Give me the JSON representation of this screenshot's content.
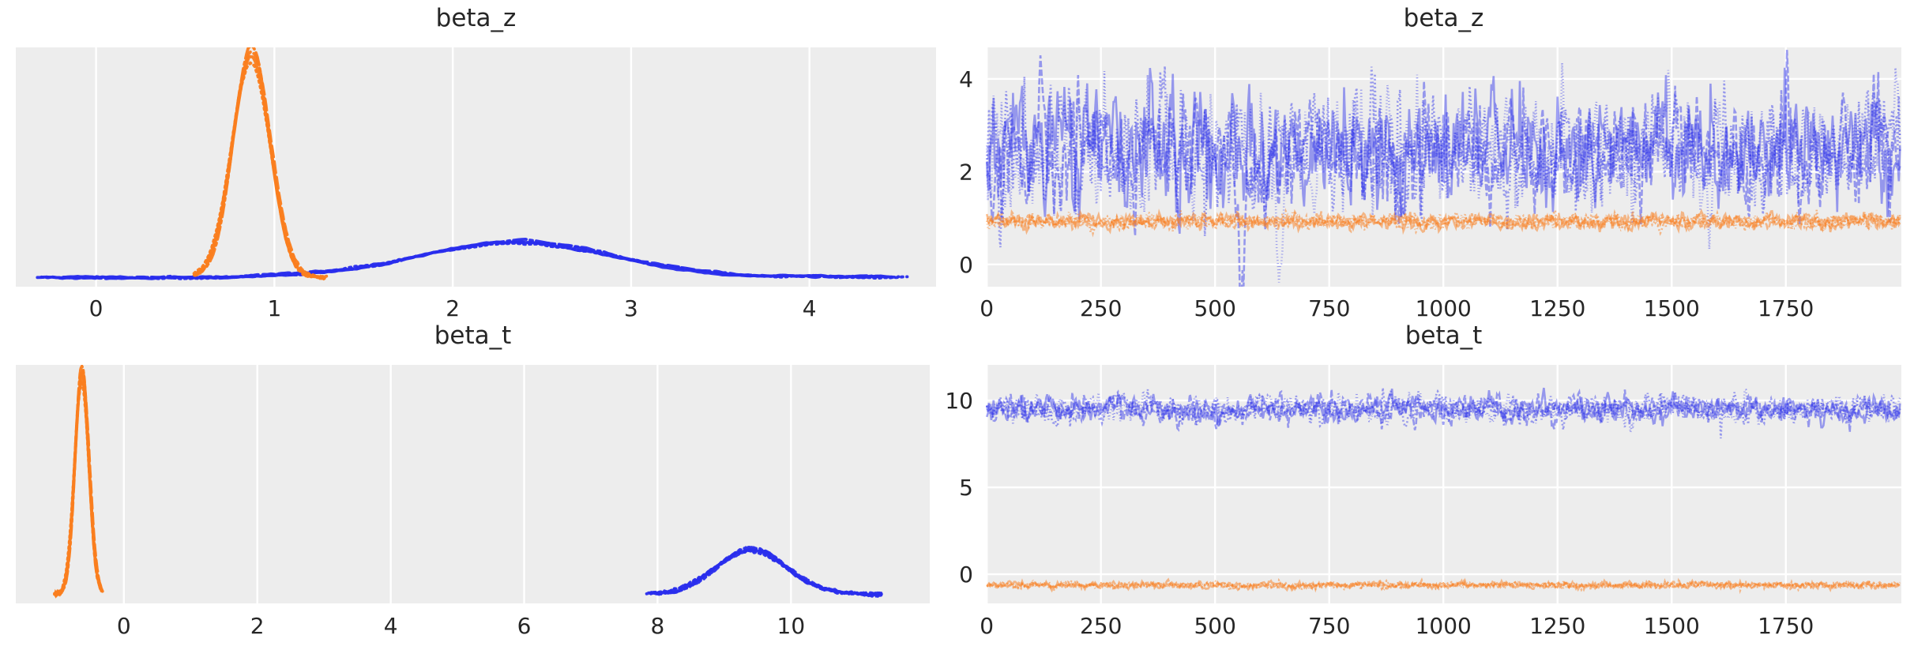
{
  "figure": {
    "background": "#ffffff",
    "panel_background": "#ededed",
    "grid_color": "#ffffff",
    "text_color": "#262626",
    "accent_colors": {
      "blue": "#2a2eec",
      "orange": "#fa7e1e"
    },
    "n_chains_per_color": 4
  },
  "chart_data": [
    {
      "id": "kde-beta_z",
      "type": "area",
      "subtype": "kde-posterior",
      "title": "beta_z",
      "xlabel": "",
      "ylabel": "",
      "xticks": [
        0,
        1,
        2,
        3,
        4
      ],
      "xlim": [
        -0.45,
        4.71
      ],
      "grid": "vertical-only",
      "legend_position": "none",
      "series": [
        {
          "name": "beta_z kde blue chains",
          "color": "#2a2eec",
          "peak_x": 2.35,
          "sd": 0.55,
          "support": [
            -0.28,
            4.46
          ],
          "peak_height_frac": 0.145
        },
        {
          "name": "beta_z kde orange chains",
          "color": "#fa7e1e",
          "peak_x": 0.87,
          "sd": 0.105,
          "support": [
            0.55,
            1.28
          ],
          "peak_height_frac": 0.92
        }
      ]
    },
    {
      "id": "trace-beta_z",
      "type": "line",
      "subtype": "mcmc-trace",
      "title": "beta_z",
      "xlabel": "",
      "ylabel": "",
      "xticks": [
        0,
        250,
        500,
        750,
        1000,
        1250,
        1500,
        1750
      ],
      "xlim": [
        -2,
        2003
      ],
      "yticks": [
        0,
        2,
        4
      ],
      "ylim": [
        -0.48,
        4.68
      ],
      "n_draws": 2000,
      "grid": "both",
      "legend_position": "none",
      "series": [
        {
          "name": "beta_z trace blue chains",
          "color": "#2a2eec",
          "mean": 2.42,
          "sd": 0.6,
          "approx_range": [
            0.5,
            4.4
          ],
          "alpha": 0.45
        },
        {
          "name": "beta_z trace orange chains",
          "color": "#fa7e1e",
          "mean": 0.93,
          "sd": 0.08,
          "approx_range": [
            0.7,
            1.2
          ],
          "alpha": 0.5
        }
      ],
      "annotations": [
        "blue chains briefly dip below 0 near draws 560-660"
      ]
    },
    {
      "id": "kde-beta_t",
      "type": "area",
      "subtype": "kde-posterior",
      "title": "beta_t",
      "xlabel": "",
      "ylabel": "",
      "xticks": [
        0,
        2,
        4,
        6,
        8,
        10
      ],
      "xlim": [
        -1.62,
        12.08
      ],
      "grid": "vertical-only",
      "legend_position": "none",
      "series": [
        {
          "name": "beta_t kde blue chains",
          "color": "#2a2eec",
          "peak_x": 9.4,
          "sd": 0.52,
          "support": [
            7.9,
            11.35
          ],
          "peak_height_frac": 0.182
        },
        {
          "name": "beta_t kde orange chains",
          "color": "#fa7e1e",
          "peak_x": -0.63,
          "sd": 0.105,
          "support": [
            -1.03,
            -0.33
          ],
          "peak_height_frac": 0.907
        }
      ]
    },
    {
      "id": "trace-beta_t",
      "type": "line",
      "subtype": "mcmc-trace",
      "title": "beta_t",
      "xlabel": "",
      "ylabel": "",
      "xticks": [
        0,
        250,
        500,
        750,
        1000,
        1250,
        1500,
        1750
      ],
      "xlim": [
        -2,
        2003
      ],
      "yticks": [
        0,
        5,
        10
      ],
      "ylim": [
        -1.68,
        12.05
      ],
      "n_draws": 2000,
      "grid": "both",
      "legend_position": "none",
      "series": [
        {
          "name": "beta_t trace blue chains",
          "color": "#2a2eec",
          "mean": 9.5,
          "sd": 0.38,
          "approx_range": [
            8.5,
            10.7
          ],
          "alpha": 0.45
        },
        {
          "name": "beta_t trace orange chains",
          "color": "#fa7e1e",
          "mean": -0.63,
          "sd": 0.09,
          "approx_range": [
            -0.9,
            -0.35
          ],
          "alpha": 0.5
        }
      ]
    }
  ]
}
